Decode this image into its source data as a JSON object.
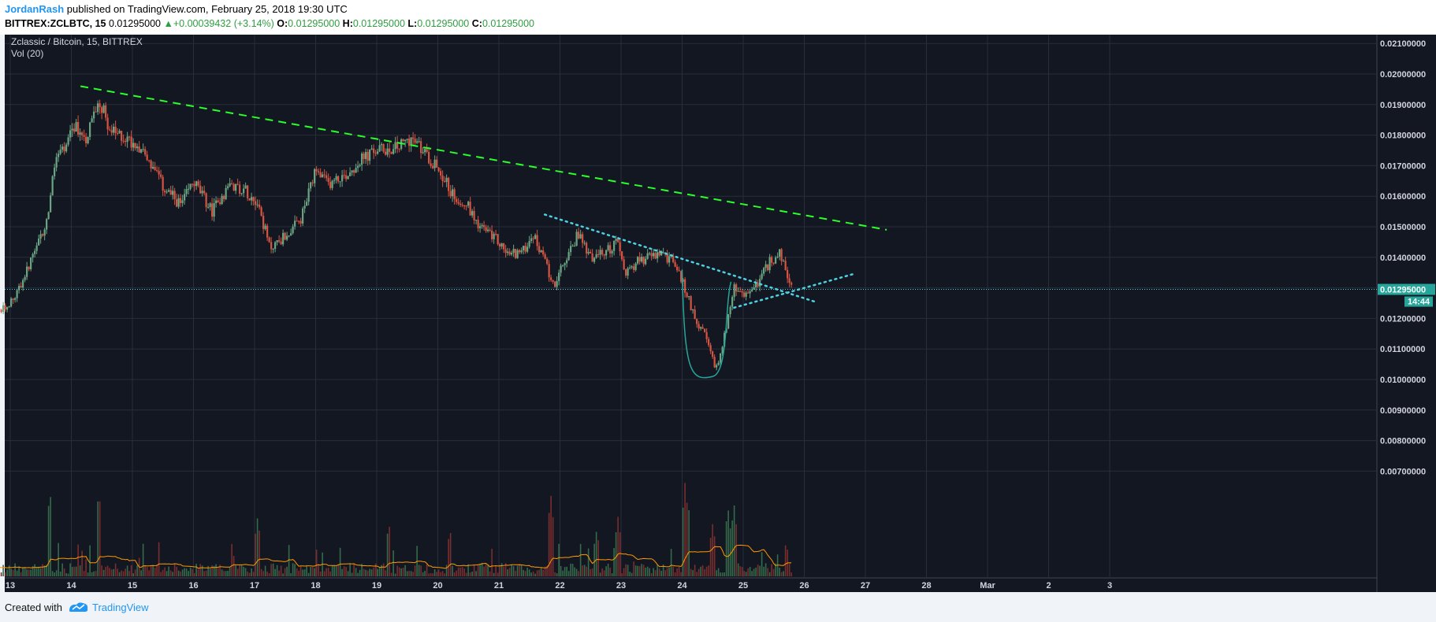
{
  "header": {
    "author": "JordanRash",
    "published_text": "published on TradingView.com, February 25, 2018 19:30 UTC",
    "symbol": "BITTREX:ZCLBTC, 15",
    "last": "0.01295000",
    "change": "+0.00039432 (+3.14%)",
    "open_label": "O:",
    "open": "0.01295000",
    "high_label": "H:",
    "high": "0.01295000",
    "low_label": "L:",
    "low": "0.01295000",
    "close_label": "C:",
    "close": "0.01295000"
  },
  "chart_info": {
    "title": "Zclassic / Bitcoin, 15, BITTREX",
    "volume_label": "Vol (20)",
    "price_badge": "0.01295000",
    "timer_badge": "14:44"
  },
  "footer": {
    "created_with": "Created with",
    "brand": "TradingView"
  },
  "colors": {
    "background": "#131722",
    "grid": "#2a2e39",
    "up": "#6ba583",
    "down": "#d75442",
    "trendline": "#2aff2a",
    "dotted": "#4dd0e1",
    "vol_ma": "#ff9800",
    "price_badge": "#26a69a"
  },
  "chart_data": {
    "type": "candlestick",
    "title": "Zclassic / Bitcoin, 15, BITTREX",
    "x_ticks": [
      "13",
      "14",
      "15",
      "16",
      "17",
      "18",
      "19",
      "20",
      "21",
      "22",
      "23",
      "24",
      "25",
      "26",
      "27",
      "28",
      "Mar",
      "2",
      "3"
    ],
    "y_ticks": [
      "0.02100000",
      "0.02000000",
      "0.01900000",
      "0.01800000",
      "0.01700000",
      "0.01600000",
      "0.01500000",
      "0.01400000",
      "0.01300000",
      "0.01200000",
      "0.01100000",
      "0.01000000",
      "0.00900000",
      "0.00800000",
      "0.00700000"
    ],
    "ylim": [
      0.0061,
      0.0214
    ],
    "current_price": 0.01295,
    "close_path": [
      {
        "day": 12.0,
        "price": 0.0117
      },
      {
        "day": 12.5,
        "price": 0.0119
      },
      {
        "day": 12.9,
        "price": 0.0123
      },
      {
        "day": 13.1,
        "price": 0.0128
      },
      {
        "day": 13.4,
        "price": 0.0141
      },
      {
        "day": 13.6,
        "price": 0.0152
      },
      {
        "day": 13.75,
        "price": 0.0173
      },
      {
        "day": 13.9,
        "price": 0.0175
      },
      {
        "day": 14.05,
        "price": 0.0183
      },
      {
        "day": 14.25,
        "price": 0.0179
      },
      {
        "day": 14.45,
        "price": 0.0192
      },
      {
        "day": 14.65,
        "price": 0.0181
      },
      {
        "day": 14.9,
        "price": 0.0179
      },
      {
        "day": 15.15,
        "price": 0.0176
      },
      {
        "day": 15.5,
        "price": 0.0163
      },
      {
        "day": 15.8,
        "price": 0.0157
      },
      {
        "day": 16.0,
        "price": 0.0165
      },
      {
        "day": 16.3,
        "price": 0.0155
      },
      {
        "day": 16.6,
        "price": 0.0164
      },
      {
        "day": 16.85,
        "price": 0.0162
      },
      {
        "day": 17.05,
        "price": 0.0158
      },
      {
        "day": 17.25,
        "price": 0.0143
      },
      {
        "day": 17.5,
        "price": 0.0147
      },
      {
        "day": 17.75,
        "price": 0.0152
      },
      {
        "day": 18.0,
        "price": 0.0168
      },
      {
        "day": 18.2,
        "price": 0.0164
      },
      {
        "day": 18.5,
        "price": 0.0167
      },
      {
        "day": 18.75,
        "price": 0.0172
      },
      {
        "day": 19.0,
        "price": 0.0175
      },
      {
        "day": 19.35,
        "price": 0.0176
      },
      {
        "day": 19.55,
        "price": 0.0179
      },
      {
        "day": 19.8,
        "price": 0.0174
      },
      {
        "day": 20.05,
        "price": 0.0168
      },
      {
        "day": 20.25,
        "price": 0.016
      },
      {
        "day": 20.45,
        "price": 0.0158
      },
      {
        "day": 20.7,
        "price": 0.015
      },
      {
        "day": 20.95,
        "price": 0.0146
      },
      {
        "day": 21.15,
        "price": 0.0141
      },
      {
        "day": 21.4,
        "price": 0.0142
      },
      {
        "day": 21.55,
        "price": 0.0148
      },
      {
        "day": 21.7,
        "price": 0.0141
      },
      {
        "day": 21.9,
        "price": 0.0131
      },
      {
        "day": 22.05,
        "price": 0.0137
      },
      {
        "day": 22.3,
        "price": 0.0148
      },
      {
        "day": 22.5,
        "price": 0.014
      },
      {
        "day": 22.7,
        "price": 0.0141
      },
      {
        "day": 22.95,
        "price": 0.0145
      },
      {
        "day": 23.05,
        "price": 0.0135
      },
      {
        "day": 23.3,
        "price": 0.0139
      },
      {
        "day": 23.6,
        "price": 0.0141
      },
      {
        "day": 23.85,
        "price": 0.0139
      },
      {
        "day": 24.0,
        "price": 0.0132
      },
      {
        "day": 24.2,
        "price": 0.0121
      },
      {
        "day": 24.4,
        "price": 0.0113
      },
      {
        "day": 24.55,
        "price": 0.0103
      },
      {
        "day": 24.7,
        "price": 0.0115
      },
      {
        "day": 24.85,
        "price": 0.013
      },
      {
        "day": 25.0,
        "price": 0.0127
      },
      {
        "day": 25.25,
        "price": 0.0132
      },
      {
        "day": 25.45,
        "price": 0.0139
      },
      {
        "day": 25.6,
        "price": 0.0141
      },
      {
        "day": 25.75,
        "price": 0.0132
      },
      {
        "day": 25.82,
        "price": 0.01295
      }
    ],
    "volume_scale_max": 15,
    "volume_spikes": [
      {
        "day": 13.65,
        "volume": 13
      },
      {
        "day": 14.45,
        "volume": 13
      },
      {
        "day": 17.05,
        "volume": 9
      },
      {
        "day": 19.2,
        "volume": 8
      },
      {
        "day": 20.2,
        "volume": 7
      },
      {
        "day": 21.85,
        "volume": 12.5
      },
      {
        "day": 22.6,
        "volume": 7
      },
      {
        "day": 22.95,
        "volume": 9
      },
      {
        "day": 24.05,
        "volume": 14.5
      },
      {
        "day": 24.1,
        "volume": 11
      },
      {
        "day": 24.5,
        "volume": 8
      },
      {
        "day": 24.75,
        "volume": 10.5
      },
      {
        "day": 24.85,
        "volume": 11
      },
      {
        "day": 25.7,
        "volume": 5
      }
    ],
    "trendline_main": {
      "from": {
        "day": 14.15,
        "price": 0.0196
      },
      "to": {
        "day": 27.35,
        "price": 0.0149
      },
      "style": "dashed"
    },
    "trendline_upper": {
      "from": {
        "day": 21.75,
        "price": 0.0154
      },
      "to": {
        "day": 26.2,
        "price": 0.01253
      },
      "style": "dotted"
    },
    "trendline_lower": {
      "from": {
        "day": 24.85,
        "price": 0.01235
      },
      "to": {
        "day": 26.8,
        "price": 0.01345
      },
      "style": "dotted"
    },
    "cup_arc": {
      "start": {
        "day": 24.0,
        "price": 0.0136
      },
      "bottom": {
        "day": 24.5,
        "price": 0.0101
      },
      "end": {
        "day": 24.8,
        "price": 0.0132
      }
    }
  }
}
